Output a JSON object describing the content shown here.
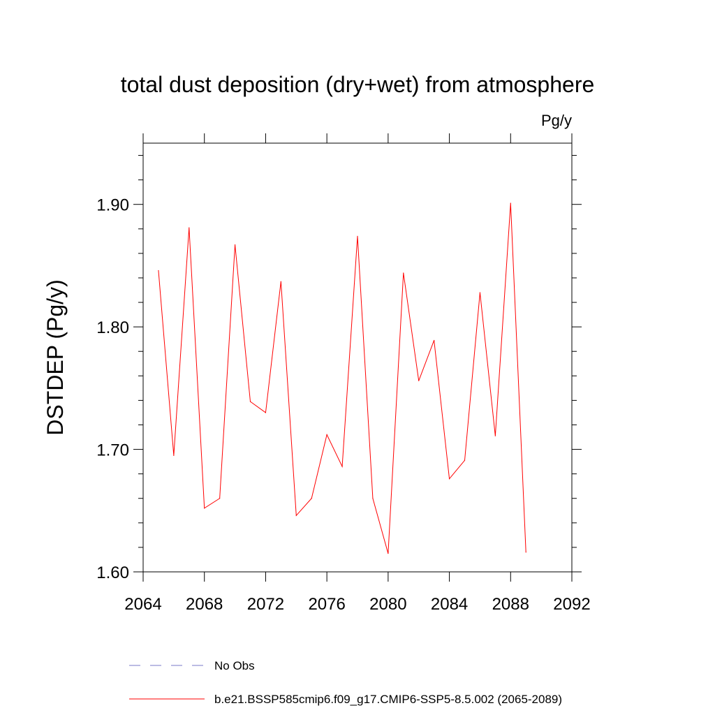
{
  "chart_data": {
    "type": "line",
    "title": "total dust deposition (dry+wet) from atmosphere",
    "units_label": "Pg/y",
    "xlabel": "",
    "ylabel": "DSTDEP  (Pg/y)",
    "xlim": [
      2064,
      2092
    ],
    "ylim": [
      1.6,
      1.95
    ],
    "x_ticks": [
      2064,
      2068,
      2072,
      2076,
      2080,
      2084,
      2088,
      2092
    ],
    "x_tick_labels": [
      "2064",
      "2068",
      "2072",
      "2076",
      "2080",
      "2084",
      "2088",
      "2092"
    ],
    "y_ticks": [
      1.6,
      1.7,
      1.8,
      1.9
    ],
    "y_tick_labels": [
      "1.60",
      "1.70",
      "1.80",
      "1.90"
    ],
    "series": [
      {
        "name": "b.e21.BSSP585cmip6.f09_g17.CMIP6-SSP5-8.5.002 (2065-2089)",
        "color": "#ff0000",
        "x": [
          2065,
          2066,
          2067,
          2068,
          2069,
          2070,
          2071,
          2072,
          2073,
          2074,
          2075,
          2076,
          2077,
          2078,
          2079,
          2080,
          2081,
          2082,
          2083,
          2084,
          2085,
          2086,
          2087,
          2088,
          2089
        ],
        "values": [
          1.846,
          1.695,
          1.881,
          1.652,
          1.66,
          1.867,
          1.739,
          1.73,
          1.837,
          1.646,
          1.66,
          1.712,
          1.686,
          1.874,
          1.66,
          1.615,
          1.844,
          1.756,
          1.789,
          1.676,
          1.691,
          1.828,
          1.711,
          1.901,
          1.616
        ]
      }
    ],
    "legend": [
      {
        "label": "No Obs",
        "style": "dashed",
        "color": "#7a7ac8"
      },
      {
        "label": "b.e21.BSSP585cmip6.f09_g17.CMIP6-SSP5-8.5.002 (2065-2089)",
        "style": "solid",
        "color": "#ff0000"
      }
    ]
  }
}
